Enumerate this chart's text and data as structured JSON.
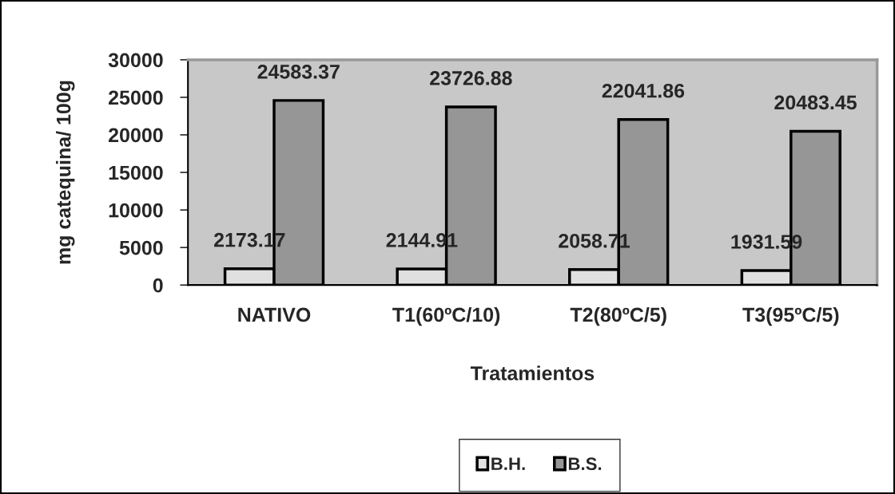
{
  "chart_data": {
    "type": "bar",
    "xlabel": "Tratamientos",
    "ylabel": "mg catequina/ 100g",
    "categories": [
      "NATIVO",
      "T1(60ºC/10)",
      "T2(80ºC/5)",
      "T3(95ºC/5)"
    ],
    "series": [
      {
        "name": "B.H.",
        "color": "#e0e0e0",
        "values": [
          2173.17,
          2144.91,
          2058.71,
          1931.59
        ]
      },
      {
        "name": "B.S.",
        "color": "#969696",
        "values": [
          24583.37,
          23726.88,
          22041.86,
          20483.45
        ]
      }
    ],
    "ylim": [
      0,
      30000
    ],
    "yticks": [
      0,
      5000,
      10000,
      15000,
      20000,
      25000,
      30000
    ],
    "data_labels": true,
    "legend": "bottom"
  }
}
